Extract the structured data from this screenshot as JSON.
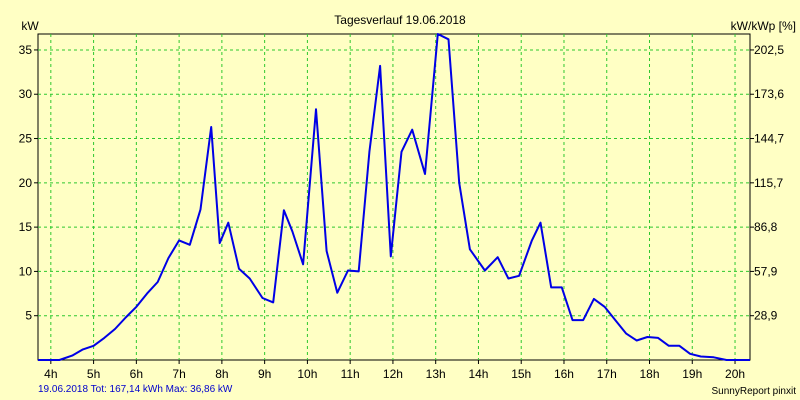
{
  "chart_data": {
    "type": "line",
    "title": "Tagesverlauf 19.06.2018",
    "ylabel_left": "kW",
    "ylabel_right": "kW/kWp [%]",
    "x_ticks": [
      "4h",
      "5h",
      "6h",
      "7h",
      "8h",
      "9h",
      "10h",
      "11h",
      "12h",
      "13h",
      "14h",
      "15h",
      "16h",
      "17h",
      "18h",
      "19h",
      "20h"
    ],
    "xlim": [
      3.7,
      20.35
    ],
    "ylim": [
      0,
      36.8
    ],
    "y_ticks_left": [
      5,
      10,
      15,
      20,
      25,
      30,
      35
    ],
    "y_ticks_right": [
      {
        "at": 5,
        "label": "28,9"
      },
      {
        "at": 10,
        "label": "57,9"
      },
      {
        "at": 15,
        "label": "86,8"
      },
      {
        "at": 20,
        "label": "115,7"
      },
      {
        "at": 25,
        "label": "144,7"
      },
      {
        "at": 30,
        "label": "173,6"
      },
      {
        "at": 35,
        "label": "202,5"
      }
    ],
    "grid": true,
    "series": [
      {
        "color": "#0000e6",
        "x": [
          3.7,
          4.2,
          4.5,
          4.75,
          5.0,
          5.25,
          5.5,
          5.75,
          6.0,
          6.25,
          6.5,
          6.75,
          7.0,
          7.25,
          7.5,
          7.75,
          7.95,
          8.15,
          8.4,
          8.65,
          8.95,
          9.2,
          9.45,
          9.65,
          9.9,
          10.2,
          10.45,
          10.7,
          10.95,
          11.2,
          11.45,
          11.7,
          11.95,
          12.2,
          12.45,
          12.75,
          13.05,
          13.3,
          13.55,
          13.8,
          14.15,
          14.45,
          14.7,
          14.95,
          15.25,
          15.45,
          15.7,
          15.95,
          16.2,
          16.45,
          16.7,
          16.95,
          17.2,
          17.45,
          17.7,
          17.95,
          18.2,
          18.45,
          18.7,
          18.95,
          19.2,
          19.5,
          19.8,
          20.1,
          20.35
        ],
        "y": [
          0,
          0,
          0.5,
          1.2,
          1.6,
          2.5,
          3.5,
          4.8,
          6.0,
          7.5,
          8.8,
          11.5,
          13.5,
          13.0,
          17.0,
          26.3,
          13.2,
          15.5,
          10.3,
          9.2,
          7.0,
          6.5,
          16.9,
          14.5,
          10.8,
          28.3,
          12.3,
          7.6,
          10.1,
          10.0,
          23.5,
          33.2,
          11.7,
          23.5,
          26.0,
          21.0,
          36.8,
          36.2,
          20.0,
          12.5,
          10.1,
          11.6,
          9.2,
          9.5,
          13.5,
          15.5,
          8.2,
          8.2,
          4.5,
          4.5,
          6.9,
          6.0,
          4.5,
          3.0,
          2.2,
          2.6,
          2.5,
          1.6,
          1.6,
          0.7,
          0.4,
          0.3,
          0,
          0,
          0
        ]
      }
    ]
  },
  "footer": {
    "summary": "19.06.2018 Tot: 167,14 kWh Max: 36,86 kW",
    "credit": "SunnyReport pinxit"
  }
}
